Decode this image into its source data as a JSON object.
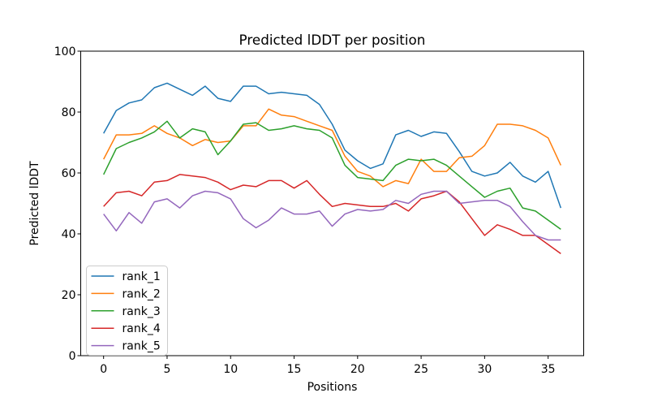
{
  "chart_data": {
    "type": "line",
    "title": "Predicted lDDT per position",
    "xlabel": "Positions",
    "ylabel": "Predicted lDDT",
    "xlim": [
      -1.8,
      37.8
    ],
    "ylim": [
      0,
      100
    ],
    "xticks": [
      0,
      5,
      10,
      15,
      20,
      25,
      30,
      35
    ],
    "yticks": [
      0,
      20,
      40,
      60,
      80,
      100
    ],
    "grid": false,
    "legend_position": "lower left",
    "x": [
      0,
      1,
      2,
      3,
      4,
      5,
      6,
      7,
      8,
      9,
      10,
      11,
      12,
      13,
      14,
      15,
      16,
      17,
      18,
      19,
      20,
      21,
      22,
      23,
      24,
      25,
      26,
      27,
      28,
      29,
      30,
      31,
      32,
      33,
      34,
      35,
      36
    ],
    "series": [
      {
        "name": "rank_1",
        "color": "#1f77b4",
        "values": [
          73,
          80.5,
          83,
          84,
          88,
          89.5,
          87.5,
          85.5,
          88.5,
          84.5,
          83.5,
          88.5,
          88.5,
          86,
          86.5,
          86,
          85.5,
          82.5,
          76,
          67.5,
          64,
          61.5,
          63,
          72.5,
          74,
          72,
          73.5,
          73,
          67,
          60.5,
          59,
          60,
          63.5,
          59,
          57,
          60.5,
          48.5
        ]
      },
      {
        "name": "rank_2",
        "color": "#ff7f0e",
        "values": [
          64.5,
          72.5,
          72.5,
          73,
          75.5,
          73,
          71.5,
          69,
          71,
          70,
          70.5,
          75.5,
          75.5,
          81,
          79,
          78.5,
          77,
          75.5,
          74,
          65.5,
          60.5,
          59,
          55.5,
          57.5,
          56.5,
          64.5,
          60.5,
          60.5,
          65,
          65.5,
          69,
          76,
          76,
          75.5,
          74,
          71.5,
          62.5
        ]
      },
      {
        "name": "rank_3",
        "color": "#2ca02c",
        "values": [
          59.5,
          68,
          70,
          71.5,
          73.5,
          77,
          71.5,
          74.5,
          73.5,
          66,
          70.5,
          76,
          76.5,
          74,
          74.5,
          75.5,
          74.5,
          74,
          71.5,
          62.5,
          58.5,
          58,
          57.5,
          62.5,
          64.5,
          64,
          64.5,
          62.5,
          59,
          55.5,
          52,
          54,
          55,
          48.5,
          47.5,
          44.5,
          41.5
        ]
      },
      {
        "name": "rank_4",
        "color": "#d62728",
        "values": [
          49,
          53.5,
          54,
          52.5,
          57,
          57.5,
          59.5,
          59,
          58.5,
          57,
          54.5,
          56,
          55.5,
          57.5,
          57.5,
          55,
          57.5,
          53,
          49,
          50,
          49.5,
          49,
          49,
          50,
          47.5,
          51.5,
          52.5,
          54,
          50.5,
          45,
          39.5,
          43,
          41.5,
          39.5,
          39.5,
          36.5,
          33.5
        ]
      },
      {
        "name": "rank_5",
        "color": "#9467bd",
        "values": [
          46.5,
          41,
          47,
          43.5,
          50.5,
          51.5,
          48.5,
          52.5,
          54,
          53.5,
          51.5,
          45,
          42,
          44.5,
          48.5,
          46.5,
          46.5,
          47.5,
          42.5,
          46.5,
          48,
          47.5,
          48,
          51,
          50,
          53,
          54,
          54,
          50,
          50.5,
          51,
          51,
          49,
          44,
          39.5,
          38,
          38
        ]
      }
    ],
    "styles": {
      "spine_color": "#000000",
      "legend_edge_color": "#cccccc",
      "legend_face_color": "#ffffff",
      "line_width": 1.5
    }
  }
}
